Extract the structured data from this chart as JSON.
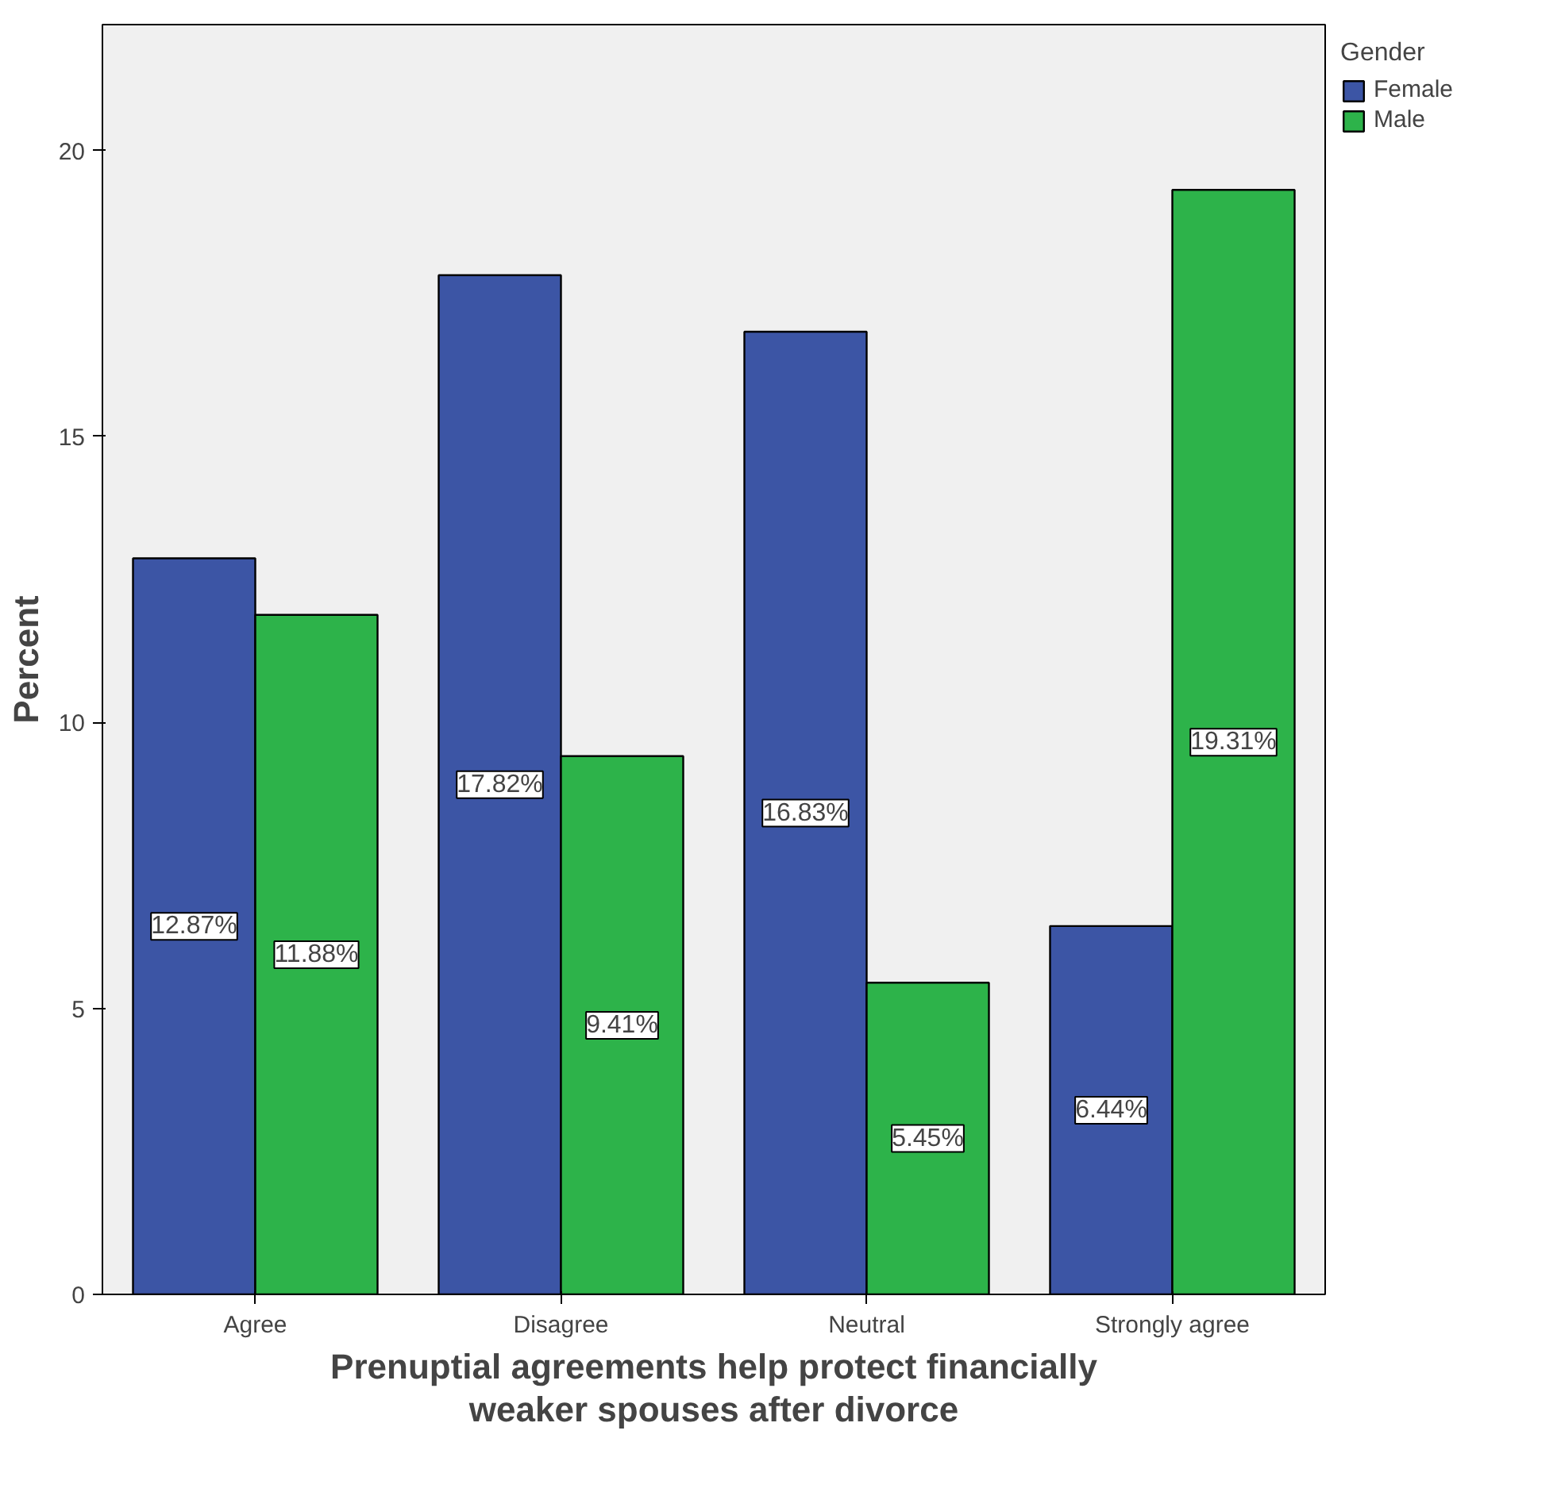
{
  "chart_data": {
    "type": "bar",
    "xlabel": "Prenuptial agreements help protect financially\nweaker spouses after divorce",
    "ylabel": "Percent",
    "legend_title": "Gender",
    "categories": [
      "Agree",
      "Disagree",
      "Neutral",
      "Strongly agree"
    ],
    "series": [
      {
        "name": "Female",
        "color": "#3c55a5",
        "values": [
          12.87,
          17.82,
          16.83,
          6.44
        ],
        "value_labels": [
          "12.87%",
          "17.82%",
          "16.83%",
          "6.44%"
        ]
      },
      {
        "name": "Male",
        "color": "#2db34a",
        "values": [
          11.88,
          9.41,
          5.45,
          19.31
        ],
        "value_labels": [
          "11.88%",
          "9.41%",
          "5.45%",
          "19.31%"
        ]
      }
    ],
    "ylim": [
      0,
      22.2
    ],
    "yticks": [
      0,
      5,
      10,
      15,
      20
    ],
    "grid": false,
    "legend": "top right"
  }
}
